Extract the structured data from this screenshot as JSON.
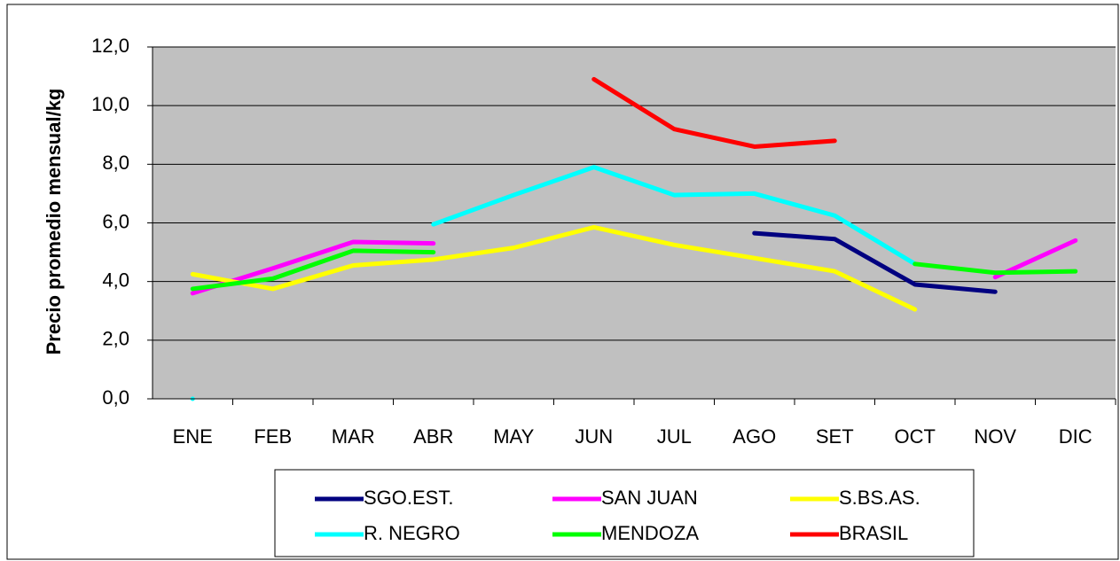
{
  "chart_data": {
    "type": "line",
    "y_label": "Precio promedio mensual/kg",
    "categories": [
      "ENE",
      "FEB",
      "MAR",
      "ABR",
      "MAY",
      "JUN",
      "JUL",
      "AGO",
      "SET",
      "OCT",
      "NOV",
      "DIC"
    ],
    "series": [
      {
        "name": "SGO.EST.",
        "color": "#000080",
        "values": [
          null,
          null,
          null,
          null,
          null,
          null,
          null,
          5.65,
          5.45,
          3.9,
          3.65,
          null
        ]
      },
      {
        "name": "SAN JUAN",
        "color": "#ff00ff",
        "values": [
          3.6,
          4.45,
          5.35,
          5.3,
          null,
          null,
          null,
          null,
          null,
          null,
          4.15,
          5.4
        ]
      },
      {
        "name": "S.BS.AS.",
        "color": "#ffff00",
        "values": [
          4.25,
          3.75,
          4.55,
          4.75,
          5.15,
          5.85,
          5.25,
          4.8,
          4.35,
          3.05,
          null,
          null
        ]
      },
      {
        "name": "R. NEGRO",
        "color": "#00ffff",
        "values": [
          0,
          null,
          null,
          5.95,
          6.95,
          7.9,
          6.95,
          7.0,
          6.25,
          4.6,
          null,
          null
        ]
      },
      {
        "name": "MENDOZA",
        "color": "#00ff00",
        "values": [
          3.75,
          4.1,
          5.05,
          5.0,
          null,
          null,
          null,
          null,
          null,
          4.6,
          4.3,
          4.35
        ]
      },
      {
        "name": "BRASIL",
        "color": "#ff0000",
        "values": [
          null,
          null,
          null,
          null,
          null,
          10.9,
          9.2,
          8.6,
          8.8,
          null,
          null,
          null
        ]
      }
    ],
    "ylim": [
      0,
      12
    ],
    "yticks": [
      {
        "value": 0,
        "label": "0,0"
      },
      {
        "value": 2,
        "label": "2,0"
      },
      {
        "value": 4,
        "label": "4,0"
      },
      {
        "value": 6,
        "label": "6,0"
      },
      {
        "value": 8,
        "label": "8,0"
      },
      {
        "value": 10,
        "label": "10,0"
      },
      {
        "value": 12,
        "label": "12,0"
      }
    ],
    "grid": true,
    "plot_background": "#c0c0c0",
    "legend": "bottom"
  }
}
